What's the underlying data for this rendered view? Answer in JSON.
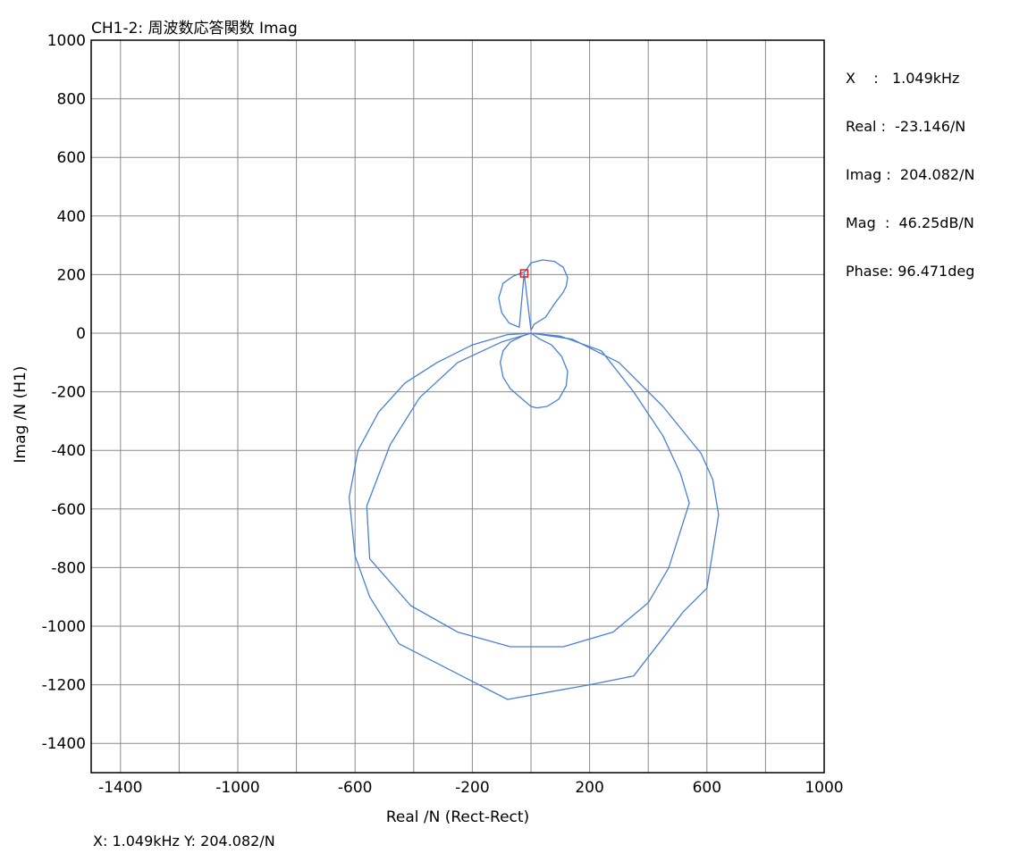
{
  "chart_data": {
    "type": "line",
    "title": "CH1-2: 周波数応答関数 Imag",
    "xlabel": "Real /N (Rect-Rect)",
    "ylabel": "Imag /N (H1)",
    "xlim": [
      -1500,
      1000
    ],
    "ylim": [
      -1500,
      1000
    ],
    "x_ticks": [
      -1400,
      -1000,
      -600,
      -200,
      200,
      600,
      1000
    ],
    "x_tick_labels": [
      "-1400",
      "-1000",
      "-600",
      "-200",
      "200",
      "600",
      "1000"
    ],
    "x_grid": [
      -1400,
      -1200,
      -1000,
      -800,
      -600,
      -400,
      -200,
      0,
      200,
      400,
      600,
      800,
      1000
    ],
    "y_ticks": [
      -1400,
      -1200,
      -1000,
      -800,
      -600,
      -400,
      -200,
      0,
      200,
      400,
      600,
      800,
      1000
    ],
    "y_tick_labels": [
      "-1400",
      "-1200",
      "-1000",
      "-800",
      "-600",
      "-400",
      "-200",
      "0",
      "200",
      "400",
      "600",
      "800",
      "1000"
    ],
    "grid": true,
    "line_color": "#4a7fd4",
    "cursor_color": "#e02020",
    "cursor_point": {
      "x": -23.146,
      "y": 204.082
    },
    "series": [
      {
        "x": [
          0,
          10,
          50,
          80,
          110,
          120,
          125,
          110,
          80,
          40,
          0,
          -20,
          -60,
          -95,
          -110,
          -100,
          -75,
          -40,
          -23.146,
          0
        ],
        "y": [
          10,
          30,
          55,
          100,
          140,
          160,
          190,
          225,
          245,
          250,
          240,
          210,
          195,
          170,
          120,
          70,
          35,
          20,
          204.082,
          10
        ]
      },
      {
        "x": [
          0,
          30,
          70,
          105,
          125,
          120,
          95,
          55,
          20,
          0,
          -30,
          -70,
          -95,
          -105,
          -95,
          -70,
          -30,
          0
        ],
        "y": [
          0,
          -20,
          -40,
          -80,
          -130,
          -180,
          -225,
          -250,
          -255,
          -250,
          -225,
          -190,
          -150,
          -100,
          -60,
          -30,
          -10,
          0
        ],
        "close": true
      },
      {
        "x": [
          0,
          100,
          240,
          350,
          450,
          510,
          540,
          470,
          400,
          280,
          110,
          -70,
          -250,
          -410,
          -550,
          -560,
          -480,
          -380,
          -250,
          -100,
          0
        ],
        "y": [
          0,
          -10,
          -60,
          -200,
          -350,
          -480,
          -580,
          -800,
          -920,
          -1020,
          -1070,
          -1070,
          -1020,
          -930,
          -770,
          -590,
          -380,
          -220,
          -100,
          -30,
          0
        ]
      },
      {
        "x": [
          0,
          140,
          300,
          450,
          580,
          620,
          640,
          600,
          520,
          350,
          200,
          -80,
          -450,
          -550,
          -600,
          -620,
          -590,
          -520,
          -430,
          -320,
          -200,
          -80,
          0
        ],
        "y": [
          0,
          -20,
          -100,
          -250,
          -410,
          -500,
          -620,
          -870,
          -950,
          -1170,
          -1200,
          -1250,
          -1060,
          -900,
          -760,
          -560,
          -400,
          -270,
          -170,
          -100,
          -40,
          -5,
          0
        ]
      }
    ]
  },
  "readout": {
    "lines": [
      "X    :   1.049kHz",
      "Real :  -23.146/N",
      "Imag :  204.082/N",
      "Mag  :  46.25dB/N",
      "Phase: 96.471deg"
    ]
  },
  "status_bar": {
    "text": "X: 1.049kHz Y: 204.082/N"
  }
}
